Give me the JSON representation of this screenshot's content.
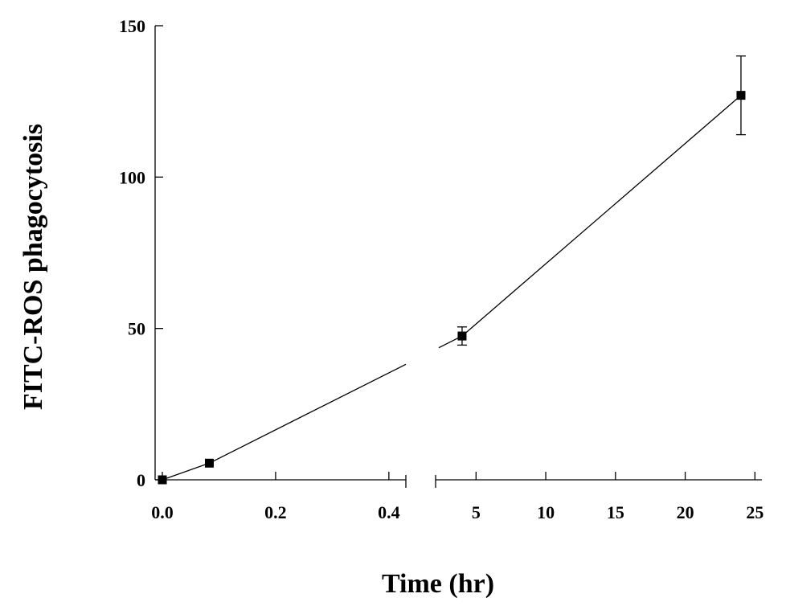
{
  "chart_data": {
    "type": "line",
    "title": "",
    "xlabel": "Time (hr)",
    "ylabel": "FITC-ROS phagocytosis",
    "ylim": [
      0,
      150
    ],
    "y_ticks": [
      "0",
      "50",
      "100",
      "150"
    ],
    "broken_x_axis": true,
    "x_segments": [
      {
        "xlim": [
          0.0,
          0.43
        ],
        "ticks": [
          "0.0",
          "0.2",
          "0.4"
        ]
      },
      {
        "xlim": [
          2.1,
          25.5
        ],
        "ticks": [
          "5",
          "10",
          "15",
          "20",
          "25"
        ]
      }
    ],
    "series": [
      {
        "marker": "square",
        "color": "#000000",
        "points": [
          {
            "x": 0.0,
            "y": 0,
            "err": 0
          },
          {
            "x": 0.083,
            "y": 5.5,
            "err": 0
          },
          {
            "x": 4.0,
            "y": 47.5,
            "err": 3
          },
          {
            "x": 24.0,
            "y": 127,
            "err": 13
          }
        ]
      }
    ],
    "grid": false,
    "legend": "none"
  }
}
